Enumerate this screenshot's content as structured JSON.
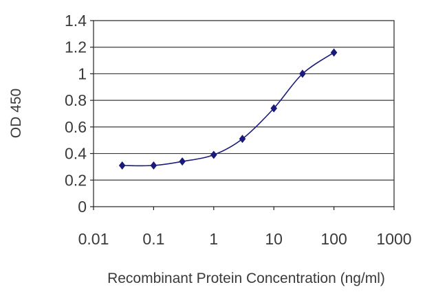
{
  "chart_data": {
    "type": "line",
    "xlabel": "Recombinant Protein Concentration (ng/ml)",
    "ylabel": "OD 450",
    "xscale": "log",
    "xlim": [
      0.01,
      1000
    ],
    "ylim": [
      0,
      1.4
    ],
    "grid": "horizontal",
    "x_ticks": [
      "0.01",
      "0.1",
      "1",
      "10",
      "100",
      "1000"
    ],
    "y_ticks": [
      "0",
      "0.2",
      "0.4",
      "0.6",
      "0.8",
      "1",
      "1.2",
      "1.4"
    ],
    "series": [
      {
        "x": [
          0.03,
          0.1,
          0.3,
          1,
          3,
          10,
          30,
          100
        ],
        "y": [
          0.31,
          0.31,
          0.34,
          0.39,
          0.51,
          0.74,
          1.0,
          1.16
        ],
        "color": "#1a1a7a",
        "marker": "diamond"
      }
    ]
  }
}
